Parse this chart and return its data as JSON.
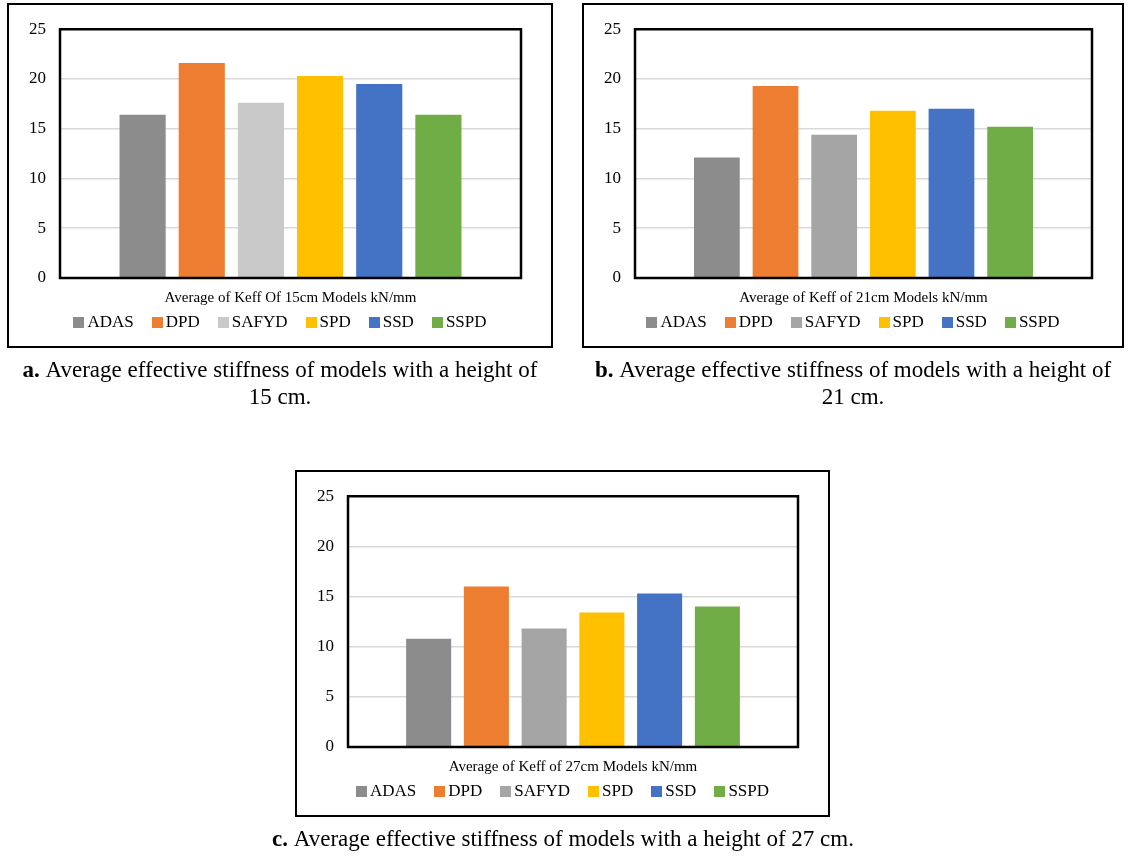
{
  "chart_data": [
    {
      "type": "bar",
      "categories": [
        "Average of Keff Of 15cm Models kN/mm"
      ],
      "series": [
        {
          "name": "ADAS",
          "color": "#8c8c8c",
          "values": [
            16.4
          ]
        },
        {
          "name": "DPD",
          "color": "#ed7d31",
          "values": [
            21.6
          ]
        },
        {
          "name": "SAFYD",
          "color": "#c9c9c9",
          "values": [
            17.6
          ]
        },
        {
          "name": "SPD",
          "color": "#ffc000",
          "values": [
            20.3
          ]
        },
        {
          "name": "SSD",
          "color": "#4472c4",
          "values": [
            19.5
          ]
        },
        {
          "name": "SSPD",
          "color": "#70ad47",
          "values": [
            16.4
          ]
        }
      ],
      "ylim": [
        0,
        25
      ],
      "yticks": [
        0,
        5,
        10,
        15,
        20,
        25
      ],
      "grid": "y",
      "legend": "bottom",
      "annotations": [
        "a. Average effective stiffness of models with a height of 15 cm."
      ]
    },
    {
      "type": "bar",
      "categories": [
        "Average of Keff of 21cm Models kN/mm"
      ],
      "series": [
        {
          "name": "ADAS",
          "color": "#8c8c8c",
          "values": [
            12.1
          ]
        },
        {
          "name": "DPD",
          "color": "#ed7d31",
          "values": [
            19.3
          ]
        },
        {
          "name": "SAFYD",
          "color": "#a5a5a5",
          "values": [
            14.4
          ]
        },
        {
          "name": "SPD",
          "color": "#ffc000",
          "values": [
            16.8
          ]
        },
        {
          "name": "SSD",
          "color": "#4472c4",
          "values": [
            17.0
          ]
        },
        {
          "name": "SSPD",
          "color": "#70ad47",
          "values": [
            15.2
          ]
        }
      ],
      "ylim": [
        0,
        25
      ],
      "yticks": [
        0,
        5,
        10,
        15,
        20,
        25
      ],
      "grid": "y",
      "legend": "bottom",
      "annotations": [
        "b. Average effective stiffness of models with a height of 21 cm."
      ]
    },
    {
      "type": "bar",
      "categories": [
        "Average of Keff of 27cm Models kN/mm"
      ],
      "series": [
        {
          "name": "ADAS",
          "color": "#8c8c8c",
          "values": [
            10.8
          ]
        },
        {
          "name": "DPD",
          "color": "#ed7d31",
          "values": [
            16.0
          ]
        },
        {
          "name": "SAFYD",
          "color": "#a5a5a5",
          "values": [
            11.8
          ]
        },
        {
          "name": "SPD",
          "color": "#ffc000",
          "values": [
            13.4
          ]
        },
        {
          "name": "SSD",
          "color": "#4472c4",
          "values": [
            15.3
          ]
        },
        {
          "name": "SSPD",
          "color": "#70ad47",
          "values": [
            14.0
          ]
        }
      ],
      "ylim": [
        0,
        25
      ],
      "yticks": [
        0,
        5,
        10,
        15,
        20,
        25
      ],
      "grid": "y",
      "legend": "bottom",
      "annotations": [
        "c. Average effective stiffness of models with a height of 27 cm."
      ]
    }
  ]
}
